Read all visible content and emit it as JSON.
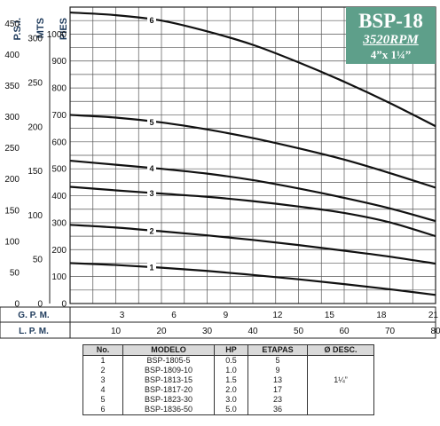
{
  "title": {
    "model": "BSP-18",
    "speed": "3520RPM",
    "size": "4”x 1¼”"
  },
  "chart_data": {
    "type": "line",
    "axes_left": [
      {
        "label": "P.S.I.",
        "ticks": [
          "0",
          "50",
          "100",
          "150",
          "200",
          "250",
          "300",
          "350",
          "400",
          "450"
        ],
        "psi_values": [
          0,
          50,
          100,
          150,
          200,
          250,
          300,
          350,
          400,
          450
        ]
      },
      {
        "label": "MTS",
        "ticks": [
          "0",
          "50",
          "100",
          "150",
          "200",
          "250",
          "300"
        ],
        "values_m": [
          0,
          50,
          100,
          150,
          200,
          250,
          300
        ]
      },
      {
        "label": "PIES",
        "ticks": [
          "0",
          "100",
          "200",
          "300",
          "400",
          "500",
          "600",
          "700",
          "800",
          "900",
          "1000"
        ],
        "values_ft": [
          0,
          100,
          200,
          300,
          400,
          500,
          600,
          700,
          800,
          900,
          1000
        ]
      }
    ],
    "x_gpm": {
      "label": "G. P. M.",
      "ticks": [
        "3",
        "6",
        "9",
        "12",
        "15",
        "18",
        "21"
      ],
      "values": [
        3,
        6,
        9,
        12,
        15,
        18,
        21
      ]
    },
    "x_lpm": {
      "label": "L. P. M.",
      "ticks": [
        "10",
        "20",
        "30",
        "40",
        "50",
        "60",
        "70",
        "80"
      ],
      "values": [
        10,
        20,
        30,
        40,
        50,
        60,
        70,
        80
      ]
    },
    "x_range_lpm": [
      0,
      80
    ],
    "y_range_ft": [
      0,
      1100
    ],
    "grid": true,
    "series": [
      {
        "name": "1",
        "x_lpm": [
          0,
          10,
          20,
          30,
          40,
          50,
          60,
          70,
          80
        ],
        "y_ft": [
          150,
          143,
          133,
          121,
          106,
          90,
          72,
          53,
          32
        ]
      },
      {
        "name": "2",
        "x_lpm": [
          0,
          10,
          20,
          30,
          40,
          50,
          60,
          70,
          80
        ],
        "y_ft": [
          292,
          282,
          268,
          253,
          236,
          217,
          196,
          174,
          148
        ]
      },
      {
        "name": "3",
        "x_lpm": [
          0,
          10,
          20,
          30,
          40,
          50,
          60,
          70,
          80
        ],
        "y_ft": [
          433,
          420,
          408,
          396,
          380,
          360,
          336,
          301,
          250
        ]
      },
      {
        "name": "4",
        "x_lpm": [
          0,
          10,
          20,
          30,
          40,
          50,
          60,
          70,
          80
        ],
        "y_ft": [
          530,
          515,
          500,
          482,
          458,
          427,
          392,
          353,
          306
        ]
      },
      {
        "name": "5",
        "x_lpm": [
          0,
          10,
          20,
          30,
          40,
          50,
          60,
          70,
          80
        ],
        "y_ft": [
          700,
          690,
          672,
          646,
          614,
          576,
          534,
          484,
          430
        ]
      },
      {
        "name": "6",
        "x_lpm": [
          0,
          10,
          20,
          30,
          40,
          50,
          60,
          70,
          80
        ],
        "y_ft": [
          1080,
          1070,
          1050,
          1010,
          960,
          895,
          823,
          744,
          658
        ]
      }
    ]
  },
  "table": {
    "headers": [
      "No.",
      "MODELO",
      "HP",
      "ETAPAS",
      "Ø DESC."
    ],
    "rows": [
      [
        "1",
        "BSP-1805-5",
        "0.5",
        "5",
        ""
      ],
      [
        "2",
        "BSP-1809-10",
        "1.0",
        "9",
        ""
      ],
      [
        "3",
        "BSP-1813-15",
        "1.5",
        "13",
        "1¼”"
      ],
      [
        "4",
        "BSP-1817-20",
        "2.0",
        "17",
        ""
      ],
      [
        "5",
        "BSP-1823-30",
        "3.0",
        "23",
        ""
      ],
      [
        "6",
        "BSP-1836-50",
        "5.0",
        "36",
        ""
      ]
    ]
  }
}
